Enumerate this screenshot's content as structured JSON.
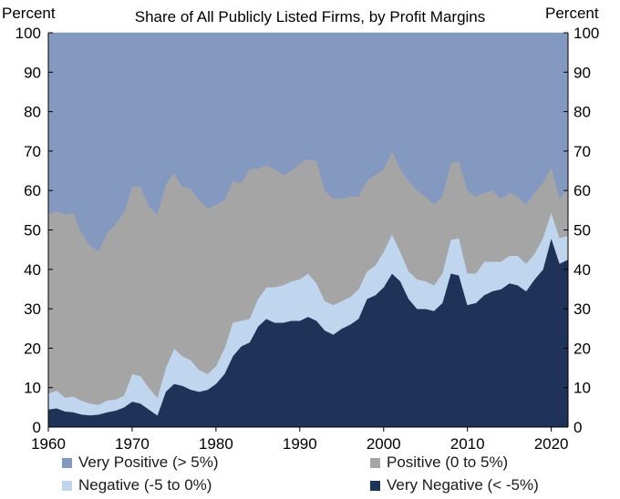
{
  "chart_data": {
    "type": "area",
    "stacked": true,
    "title": "Share of All Publicly Listed Firms, by Profit Margins",
    "ylabel_left": "Percent",
    "ylabel_right": "Percent",
    "xlim": [
      1960,
      2022
    ],
    "ylim": [
      0,
      100
    ],
    "x_ticks": [
      1960,
      1970,
      1980,
      1990,
      2000,
      2010,
      2020
    ],
    "x_tick_labels": [
      "1960",
      "1970",
      "1980",
      "1990",
      "2000",
      "2010",
      "2020"
    ],
    "y_ticks": [
      0,
      10,
      20,
      30,
      40,
      50,
      60,
      70,
      80,
      90,
      100
    ],
    "y_tick_labels": [
      "0",
      "10",
      "20",
      "30",
      "40",
      "50",
      "60",
      "70",
      "80",
      "90",
      "100"
    ],
    "grid": false,
    "legend_position": "bottom",
    "x": [
      1960,
      1961,
      1962,
      1963,
      1964,
      1965,
      1966,
      1967,
      1968,
      1969,
      1970,
      1971,
      1972,
      1973,
      1974,
      1975,
      1976,
      1977,
      1978,
      1979,
      1980,
      1981,
      1982,
      1983,
      1984,
      1985,
      1986,
      1987,
      1988,
      1989,
      1990,
      1991,
      1992,
      1993,
      1994,
      1995,
      1996,
      1997,
      1998,
      1999,
      2000,
      2001,
      2002,
      2003,
      2004,
      2005,
      2006,
      2007,
      2008,
      2009,
      2010,
      2011,
      2012,
      2013,
      2014,
      2015,
      2016,
      2017,
      2018,
      2019,
      2020,
      2021,
      2022
    ],
    "series": [
      {
        "name": "Very Negative (< -5%)",
        "color": "#1f3358",
        "values": [
          4.5,
          4.8,
          4.0,
          3.8,
          3.2,
          3.0,
          3.2,
          3.8,
          4.2,
          5.0,
          6.5,
          6.0,
          4.5,
          3.0,
          9.0,
          11.0,
          10.5,
          9.5,
          9.0,
          9.5,
          11.0,
          13.5,
          18.0,
          20.5,
          21.5,
          25.5,
          27.5,
          26.5,
          26.5,
          27.0,
          27.0,
          28.0,
          27.0,
          24.5,
          23.5,
          25.0,
          26.0,
          27.5,
          32.5,
          33.5,
          35.5,
          39.0,
          37.0,
          32.5,
          30.0,
          30.0,
          29.5,
          31.5,
          39.0,
          38.5,
          31.0,
          31.5,
          33.5,
          34.5,
          35.0,
          36.5,
          36.0,
          34.5,
          37.5,
          40.0,
          48.0,
          41.5,
          42.5
        ]
      },
      {
        "name": "Negative (-5 to 0%)",
        "color": "#bfd6ee",
        "values": [
          4.0,
          4.5,
          3.5,
          4.0,
          3.5,
          3.0,
          2.5,
          3.0,
          2.8,
          3.0,
          7.0,
          7.0,
          5.5,
          4.5,
          6.0,
          9.0,
          7.5,
          7.5,
          5.5,
          4.0,
          4.5,
          6.5,
          8.5,
          6.5,
          6.0,
          7.0,
          8.0,
          9.0,
          9.5,
          10.0,
          10.5,
          11.0,
          9.5,
          7.5,
          7.5,
          7.0,
          7.0,
          7.5,
          7.0,
          7.5,
          9.0,
          10.0,
          7.5,
          7.0,
          7.5,
          7.0,
          6.5,
          7.5,
          8.5,
          9.5,
          8.0,
          7.5,
          8.5,
          7.5,
          7.0,
          7.0,
          7.5,
          7.0,
          6.5,
          8.0,
          6.5,
          6.5,
          6.0
        ]
      },
      {
        "name": "Positive (0 to 5%)",
        "color": "#a5a5a5",
        "values": [
          45.5,
          45.5,
          46.5,
          46.5,
          42.5,
          40.0,
          39.0,
          42.5,
          44.5,
          46.5,
          47.5,
          48.0,
          46.0,
          46.5,
          46.5,
          44.5,
          43.0,
          43.5,
          43.0,
          42.0,
          41.0,
          37.5,
          36.0,
          35.0,
          38.0,
          33.0,
          31.0,
          30.0,
          28.0,
          28.0,
          29.5,
          29.0,
          31.0,
          28.0,
          27.0,
          26.0,
          25.5,
          23.5,
          23.0,
          23.0,
          21.0,
          21.0,
          21.0,
          23.0,
          22.5,
          21.5,
          20.5,
          19.5,
          19.5,
          19.5,
          21.0,
          19.5,
          17.5,
          18.0,
          16.0,
          16.0,
          15.0,
          15.0,
          15.5,
          14.0,
          11.5,
          10.0,
          12.0
        ]
      },
      {
        "name": "Very Positive (> 5%)",
        "color": "#8499c0",
        "values": [
          46.0,
          45.2,
          46.0,
          45.7,
          50.8,
          54.0,
          55.3,
          50.7,
          48.5,
          45.5,
          39.0,
          39.0,
          44.0,
          46.0,
          38.5,
          35.5,
          39.0,
          39.5,
          42.5,
          44.5,
          43.5,
          42.5,
          37.5,
          38.0,
          34.5,
          34.5,
          33.5,
          34.5,
          36.0,
          35.0,
          33.0,
          32.0,
          32.5,
          40.0,
          42.0,
          42.0,
          41.5,
          41.5,
          37.5,
          36.0,
          34.5,
          30.0,
          34.5,
          37.5,
          40.0,
          41.5,
          43.5,
          41.5,
          33.0,
          32.5,
          40.0,
          41.5,
          40.5,
          40.0,
          42.0,
          40.5,
          41.5,
          43.5,
          40.5,
          38.0,
          34.0,
          42.0,
          39.5
        ]
      }
    ]
  },
  "legend": {
    "items": [
      {
        "label": "Very Positive (> 5%)",
        "color": "#8499c0"
      },
      {
        "label": "Positive (0 to 5%)",
        "color": "#a5a5a5"
      },
      {
        "label": "Negative (-5 to 0%)",
        "color": "#bfd6ee"
      },
      {
        "label": "Very Negative (< -5%)",
        "color": "#1f3358"
      }
    ]
  }
}
